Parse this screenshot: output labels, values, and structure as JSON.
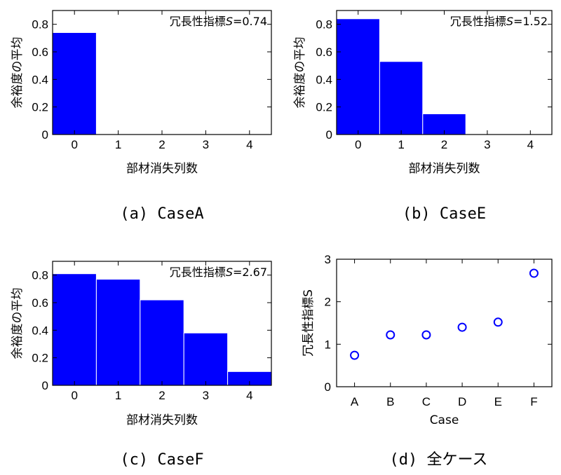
{
  "chart_data": [
    {
      "type": "bar",
      "panel_caption": "(a) CaseA",
      "annotation": {
        "label": "冗長性指標",
        "variable": "S",
        "value": "=0.74"
      },
      "xlabel": "部材消失列数",
      "ylabel": "余裕度の平均",
      "categories": [
        "0",
        "1",
        "2",
        "3",
        "4"
      ],
      "values": [
        0.74,
        0,
        0,
        0,
        0
      ],
      "xlim": [
        -0.5,
        4.5
      ],
      "ylim": [
        0,
        0.9
      ],
      "yticks": [
        "0",
        "0.2",
        "0.4",
        "0.6",
        "0.8"
      ],
      "bar_color": "#0000ff"
    },
    {
      "type": "bar",
      "panel_caption": "(b) CaseE",
      "annotation": {
        "label": "冗長性指標",
        "variable": "S",
        "value": "=1.52"
      },
      "xlabel": "部材消失列数",
      "ylabel": "余裕度の平均",
      "categories": [
        "0",
        "1",
        "2",
        "3",
        "4"
      ],
      "values": [
        0.84,
        0.53,
        0.15,
        0,
        0
      ],
      "xlim": [
        -0.5,
        4.5
      ],
      "ylim": [
        0,
        0.9
      ],
      "yticks": [
        "0",
        "0.2",
        "0.4",
        "0.6",
        "0.8"
      ],
      "bar_color": "#0000ff"
    },
    {
      "type": "bar",
      "panel_caption": "(c) CaseF",
      "annotation": {
        "label": "冗長性指標",
        "variable": "S",
        "value": "=2.67"
      },
      "xlabel": "部材消失列数",
      "ylabel": "余裕度の平均",
      "categories": [
        "0",
        "1",
        "2",
        "3",
        "4"
      ],
      "values": [
        0.81,
        0.77,
        0.62,
        0.38,
        0.1
      ],
      "xlim": [
        -0.5,
        4.5
      ],
      "ylim": [
        0,
        0.9
      ],
      "yticks": [
        "0",
        "0.2",
        "0.4",
        "0.6",
        "0.8"
      ],
      "bar_color": "#0000ff"
    },
    {
      "type": "scatter",
      "panel_caption": "(d) 全ケース",
      "xlabel": "Case",
      "ylabel": "冗長性指標S",
      "categories": [
        "A",
        "B",
        "C",
        "D",
        "E",
        "F"
      ],
      "values": [
        0.74,
        1.22,
        1.22,
        1.4,
        1.52,
        2.67
      ],
      "ylim": [
        0,
        3
      ],
      "yticks": [
        "0",
        "1",
        "2",
        "3"
      ],
      "marker": "open-circle",
      "marker_color": "#0000ff"
    }
  ]
}
